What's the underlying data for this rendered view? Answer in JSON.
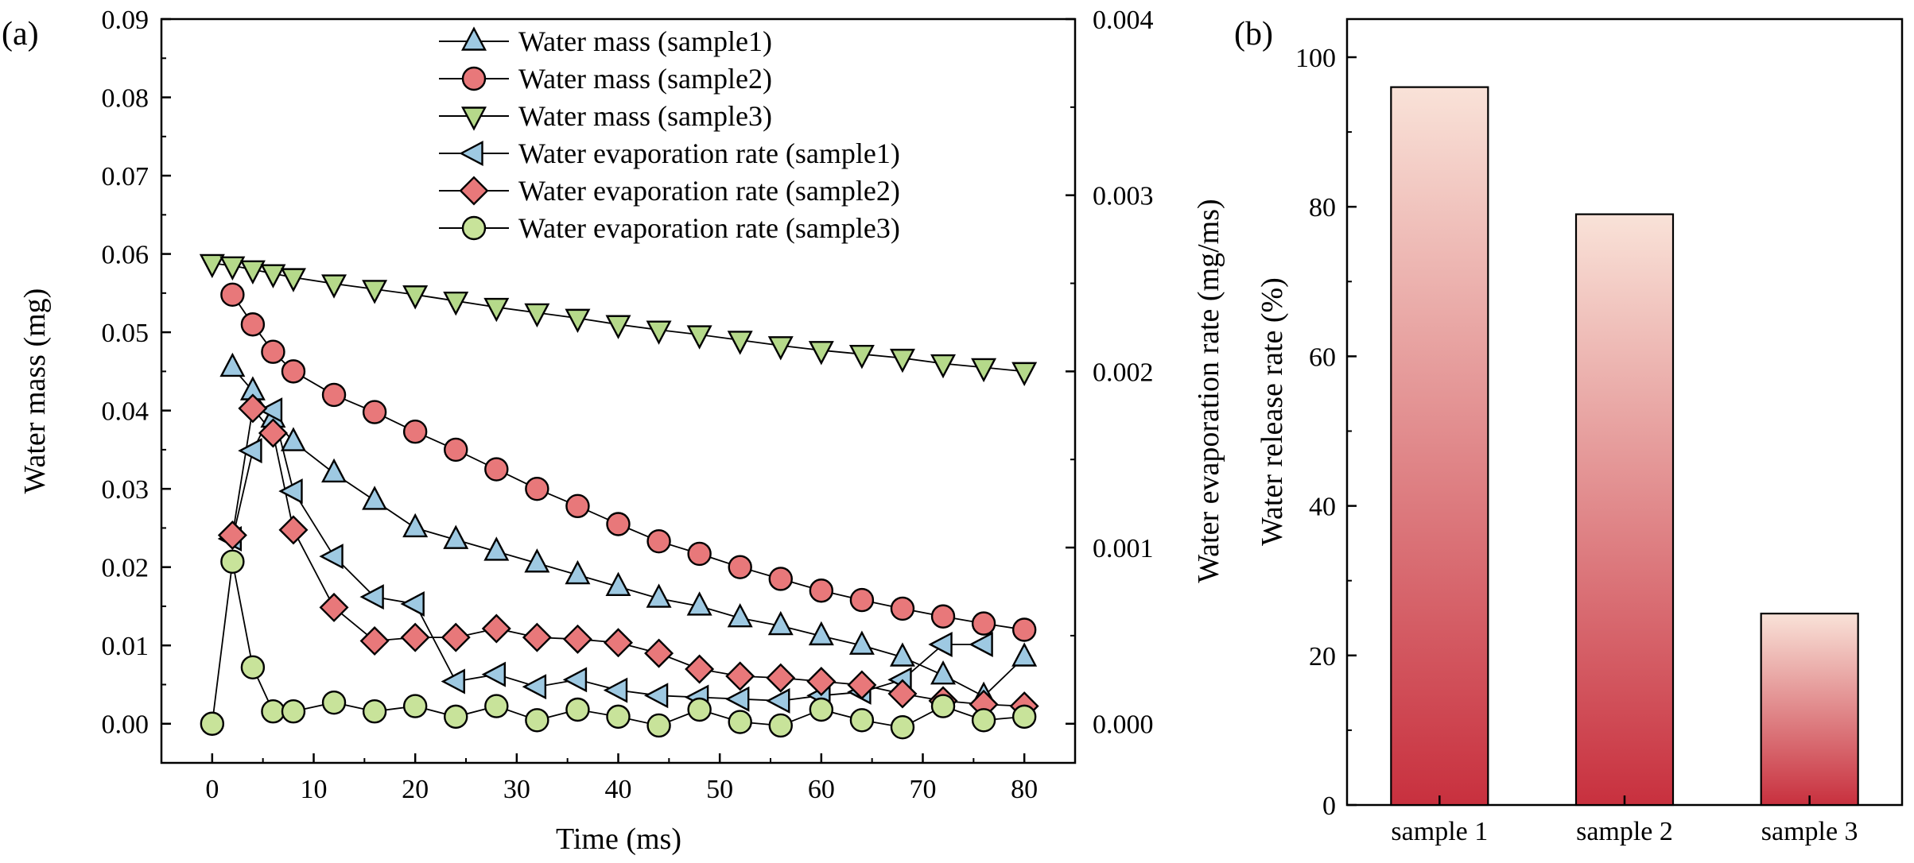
{
  "chart_data": [
    {
      "type": "scatter",
      "panel_label": "(a)",
      "xlabel": "Time (ms)",
      "ylabel": "Water mass (mg)",
      "y2label": "Water evaporation rate (mg/ms)",
      "xlim": [
        -5,
        85
      ],
      "ylim": [
        -0.005,
        0.09
      ],
      "y2lim": [
        -0.0002222,
        0.004
      ],
      "xticks": [
        0,
        10,
        20,
        30,
        40,
        50,
        60,
        70,
        80
      ],
      "xtick_labels": [
        "0",
        "10",
        "20",
        "30",
        "40",
        "50",
        "60",
        "70",
        "80"
      ],
      "yticks": [
        0,
        0.01,
        0.02,
        0.03,
        0.04,
        0.05,
        0.06,
        0.07,
        0.08,
        0.09
      ],
      "ytick_labels": [
        "0.00",
        "0.01",
        "0.02",
        "0.03",
        "0.04",
        "0.05",
        "0.06",
        "0.07",
        "0.08",
        "0.09"
      ],
      "y2ticks": [
        0,
        0.001,
        0.002,
        0.003,
        0.004
      ],
      "y2tick_labels": [
        "0.000",
        "0.001",
        "0.002",
        "0.003",
        "0.004"
      ],
      "legend_position": "top-center",
      "series": [
        {
          "name": "Water mass (sample1)",
          "axis": "left",
          "marker": "triangle-up",
          "color": "#9ec9e2",
          "x": [
            2,
            4,
            6,
            8,
            12,
            16,
            20,
            24,
            28,
            32,
            36,
            40,
            44,
            48,
            52,
            56,
            60,
            64,
            68,
            72,
            76,
            80
          ],
          "y": [
            0.0455,
            0.0425,
            0.039,
            0.036,
            0.032,
            0.0285,
            0.025,
            0.0235,
            0.022,
            0.0205,
            0.019,
            0.0175,
            0.016,
            0.015,
            0.0135,
            0.0125,
            0.0112,
            0.01,
            0.0085,
            0.0062,
            0.0035,
            0.0085
          ]
        },
        {
          "name": "Water mass (sample2)",
          "axis": "left",
          "marker": "circle",
          "color": "#e8787a",
          "x": [
            2,
            4,
            6,
            8,
            12,
            16,
            20,
            24,
            28,
            32,
            36,
            40,
            44,
            48,
            52,
            56,
            60,
            64,
            68,
            72,
            76,
            80
          ],
          "y": [
            0.0548,
            0.051,
            0.0475,
            0.045,
            0.042,
            0.0398,
            0.0373,
            0.035,
            0.0325,
            0.03,
            0.0278,
            0.0255,
            0.0233,
            0.0217,
            0.02,
            0.0185,
            0.017,
            0.0158,
            0.0147,
            0.0137,
            0.0128,
            0.012
          ]
        },
        {
          "name": "Water mass (sample3)",
          "axis": "left",
          "marker": "triangle-down",
          "color": "#b5d98a",
          "x": [
            0,
            2,
            4,
            6,
            8,
            12,
            16,
            20,
            24,
            28,
            32,
            36,
            40,
            44,
            48,
            52,
            56,
            60,
            64,
            68,
            72,
            76,
            80
          ],
          "y": [
            0.0588,
            0.0585,
            0.058,
            0.0575,
            0.057,
            0.0562,
            0.0555,
            0.0548,
            0.054,
            0.0532,
            0.0525,
            0.0518,
            0.051,
            0.0503,
            0.0497,
            0.049,
            0.0483,
            0.0477,
            0.0472,
            0.0467,
            0.046,
            0.0455,
            0.045
          ]
        },
        {
          "name": "Water evaporation rate (sample1)",
          "axis": "right",
          "marker": "triangle-left",
          "color": "#9ec9e2",
          "x": [
            2,
            4,
            6,
            8,
            12,
            16,
            20,
            24,
            28,
            32,
            36,
            40,
            44,
            48,
            52,
            56,
            60,
            64,
            68,
            72,
            76
          ],
          "y": [
            0.00105,
            0.00155,
            0.00178,
            0.00132,
            0.00095,
            0.00072,
            0.00068,
            0.00024,
            0.00028,
            0.00021,
            0.00025,
            0.00019,
            0.00016,
            0.00015,
            0.00014,
            0.00013,
            0.00016,
            0.00018,
            0.00025,
            0.00045,
            0.00045
          ]
        },
        {
          "name": "Water evaporation rate (sample2)",
          "axis": "right",
          "marker": "diamond",
          "color": "#e8787a",
          "x": [
            2,
            4,
            6,
            8,
            12,
            16,
            20,
            24,
            28,
            32,
            36,
            40,
            44,
            48,
            52,
            56,
            60,
            64,
            68,
            72,
            76,
            80
          ],
          "y": [
            0.00107,
            0.00179,
            0.00165,
            0.0011,
            0.00066,
            0.00047,
            0.00049,
            0.00049,
            0.00054,
            0.00049,
            0.00048,
            0.00046,
            0.0004,
            0.00031,
            0.00027,
            0.00026,
            0.00024,
            0.00022,
            0.00017,
            0.00013,
            0.00011,
            0.0001
          ]
        },
        {
          "name": "Water evaporation rate (sample3)",
          "axis": "right",
          "marker": "circle",
          "color": "#c8e39a",
          "x": [
            0,
            2,
            4,
            6,
            8,
            12,
            16,
            20,
            24,
            28,
            32,
            36,
            40,
            44,
            48,
            52,
            56,
            60,
            64,
            68,
            72,
            76,
            80
          ],
          "y": [
            0.0,
            0.00092,
            0.00032,
            7e-05,
            7e-05,
            0.00012,
            7e-05,
            0.0001,
            4e-05,
            0.0001,
            2e-05,
            8e-05,
            4e-05,
            -1e-05,
            8e-05,
            1e-05,
            -1e-05,
            8e-05,
            2e-05,
            -2e-05,
            0.0001,
            2e-05,
            4e-05
          ]
        }
      ]
    },
    {
      "type": "bar",
      "panel_label": "(b)",
      "xlabel": "",
      "ylabel": "Water release rate (%)",
      "ylim": [
        0,
        100
      ],
      "yticks": [
        0,
        20,
        40,
        60,
        80,
        100
      ],
      "ytick_labels": [
        "0",
        "20",
        "40",
        "60",
        "80",
        "100"
      ],
      "categories": [
        "sample 1",
        "sample 2",
        "sample 3"
      ],
      "values": [
        96,
        79,
        25.6
      ],
      "gradient_colors": [
        "#f9e2d8",
        "#c8303e"
      ]
    }
  ]
}
